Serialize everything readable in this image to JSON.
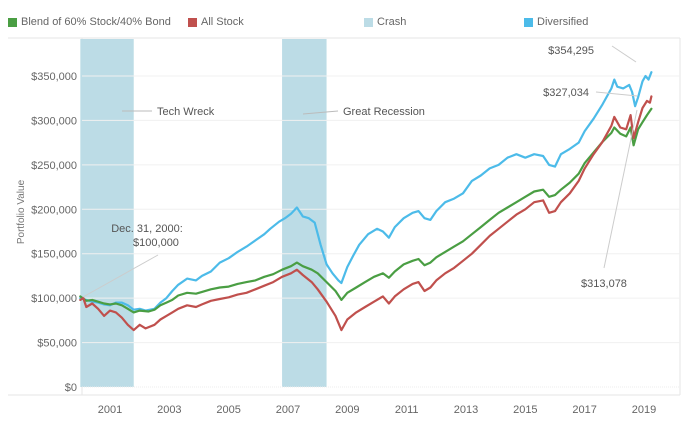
{
  "chart_data": {
    "type": "line",
    "title": "",
    "xlabel": "",
    "ylabel": "Portfolio Value",
    "xlim": [
      2000.0,
      2019.3
    ],
    "ylim": [
      0,
      370000
    ],
    "grid": true,
    "legend_position": "top",
    "x_ticks": [
      {
        "value": 2001,
        "label": "2001"
      },
      {
        "value": 2003,
        "label": "2003"
      },
      {
        "value": 2005,
        "label": "2005"
      },
      {
        "value": 2007,
        "label": "2007"
      },
      {
        "value": 2009,
        "label": "2009"
      },
      {
        "value": 2011,
        "label": "2011"
      },
      {
        "value": 2013,
        "label": "2013"
      },
      {
        "value": 2015,
        "label": "2015"
      },
      {
        "value": 2017,
        "label": "2017"
      },
      {
        "value": 2019,
        "label": "2019"
      }
    ],
    "y_ticks": [
      {
        "value": 0,
        "label": "$0"
      },
      {
        "value": 50000,
        "label": "$50,000"
      },
      {
        "value": 100000,
        "label": "$100,000"
      },
      {
        "value": 150000,
        "label": "$150,000"
      },
      {
        "value": 200000,
        "label": "$200,000"
      },
      {
        "value": 250000,
        "label": "$250,000"
      },
      {
        "value": 300000,
        "label": "$300,000"
      },
      {
        "value": 350000,
        "label": "$350,000"
      }
    ],
    "legend": [
      {
        "name": "Blend of 60% Stock/40% Bond",
        "color": "#4a9e43"
      },
      {
        "name": "All Stock",
        "color": "#c0504d"
      },
      {
        "name": "Crash",
        "color": "#bcdce6"
      },
      {
        "name": "Diversified",
        "color": "#4cbbe9"
      }
    ],
    "crash_bands": [
      {
        "label": "Tech Wreck",
        "start": 2000.0,
        "end": 2001.8
      },
      {
        "label": "Great Recession",
        "start": 2006.8,
        "end": 2008.3
      }
    ],
    "series": [
      {
        "name": "Diversified",
        "color": "#4cbbe9",
        "points": [
          [
            2000.0,
            100000
          ],
          [
            2000.2,
            98000
          ],
          [
            2000.4,
            96000
          ],
          [
            2000.6,
            95000
          ],
          [
            2000.8,
            93000
          ],
          [
            2001.0,
            92000
          ],
          [
            2001.2,
            95000
          ],
          [
            2001.4,
            95000
          ],
          [
            2001.6,
            92000
          ],
          [
            2001.8,
            87000
          ],
          [
            2002.0,
            88000
          ],
          [
            2002.2,
            86000
          ],
          [
            2002.5,
            88000
          ],
          [
            2002.7,
            95000
          ],
          [
            2002.9,
            100000
          ],
          [
            2003.1,
            108000
          ],
          [
            2003.3,
            115000
          ],
          [
            2003.6,
            122000
          ],
          [
            2003.9,
            120000
          ],
          [
            2004.1,
            125000
          ],
          [
            2004.4,
            130000
          ],
          [
            2004.7,
            140000
          ],
          [
            2005.0,
            145000
          ],
          [
            2005.3,
            152000
          ],
          [
            2005.6,
            158000
          ],
          [
            2005.9,
            165000
          ],
          [
            2006.2,
            172000
          ],
          [
            2006.4,
            178000
          ],
          [
            2006.7,
            186000
          ],
          [
            2006.9,
            190000
          ],
          [
            2007.1,
            195000
          ],
          [
            2007.3,
            202000
          ],
          [
            2007.5,
            192000
          ],
          [
            2007.7,
            190000
          ],
          [
            2007.9,
            185000
          ],
          [
            2008.1,
            160000
          ],
          [
            2008.3,
            138000
          ],
          [
            2008.5,
            128000
          ],
          [
            2008.7,
            120000
          ],
          [
            2008.8,
            117000
          ],
          [
            2009.0,
            135000
          ],
          [
            2009.2,
            148000
          ],
          [
            2009.4,
            160000
          ],
          [
            2009.7,
            172000
          ],
          [
            2010.0,
            178000
          ],
          [
            2010.2,
            175000
          ],
          [
            2010.4,
            168000
          ],
          [
            2010.6,
            180000
          ],
          [
            2010.9,
            190000
          ],
          [
            2011.2,
            196000
          ],
          [
            2011.4,
            198000
          ],
          [
            2011.6,
            190000
          ],
          [
            2011.8,
            188000
          ],
          [
            2012.0,
            198000
          ],
          [
            2012.3,
            208000
          ],
          [
            2012.6,
            212000
          ],
          [
            2012.9,
            218000
          ],
          [
            2013.2,
            232000
          ],
          [
            2013.5,
            238000
          ],
          [
            2013.8,
            246000
          ],
          [
            2014.1,
            250000
          ],
          [
            2014.4,
            258000
          ],
          [
            2014.7,
            262000
          ],
          [
            2015.0,
            258000
          ],
          [
            2015.3,
            262000
          ],
          [
            2015.6,
            260000
          ],
          [
            2015.8,
            250000
          ],
          [
            2016.0,
            248000
          ],
          [
            2016.2,
            262000
          ],
          [
            2016.5,
            268000
          ],
          [
            2016.8,
            275000
          ],
          [
            2017.0,
            288000
          ],
          [
            2017.3,
            302000
          ],
          [
            2017.6,
            318000
          ],
          [
            2017.9,
            336000
          ],
          [
            2018.0,
            346000
          ],
          [
            2018.1,
            338000
          ],
          [
            2018.3,
            336000
          ],
          [
            2018.5,
            340000
          ],
          [
            2018.6,
            332000
          ],
          [
            2018.7,
            316000
          ],
          [
            2018.8,
            326000
          ],
          [
            2018.95,
            344000
          ],
          [
            2019.05,
            350000
          ],
          [
            2019.15,
            346000
          ],
          [
            2019.25,
            354295
          ]
        ]
      },
      {
        "name": "Blend of 60% Stock/40% Bond",
        "color": "#4a9e43",
        "points": [
          [
            2000.0,
            102000
          ],
          [
            2000.2,
            97000
          ],
          [
            2000.4,
            98000
          ],
          [
            2000.6,
            96000
          ],
          [
            2000.8,
            94000
          ],
          [
            2001.0,
            93000
          ],
          [
            2001.2,
            94000
          ],
          [
            2001.4,
            92000
          ],
          [
            2001.6,
            88000
          ],
          [
            2001.8,
            84000
          ],
          [
            2002.0,
            86000
          ],
          [
            2002.3,
            85000
          ],
          [
            2002.5,
            87000
          ],
          [
            2002.7,
            92000
          ],
          [
            2002.9,
            95000
          ],
          [
            2003.1,
            98000
          ],
          [
            2003.3,
            103000
          ],
          [
            2003.6,
            106000
          ],
          [
            2003.9,
            105000
          ],
          [
            2004.1,
            107000
          ],
          [
            2004.4,
            110000
          ],
          [
            2004.7,
            112000
          ],
          [
            2005.0,
            113000
          ],
          [
            2005.3,
            116000
          ],
          [
            2005.6,
            118000
          ],
          [
            2005.9,
            120000
          ],
          [
            2006.2,
            124000
          ],
          [
            2006.5,
            127000
          ],
          [
            2006.8,
            132000
          ],
          [
            2007.1,
            136000
          ],
          [
            2007.3,
            140000
          ],
          [
            2007.5,
            136000
          ],
          [
            2007.8,
            132000
          ],
          [
            2008.0,
            128000
          ],
          [
            2008.3,
            118000
          ],
          [
            2008.6,
            108000
          ],
          [
            2008.8,
            98000
          ],
          [
            2009.0,
            106000
          ],
          [
            2009.3,
            112000
          ],
          [
            2009.6,
            118000
          ],
          [
            2009.9,
            124000
          ],
          [
            2010.2,
            128000
          ],
          [
            2010.4,
            123000
          ],
          [
            2010.6,
            130000
          ],
          [
            2010.9,
            138000
          ],
          [
            2011.2,
            142000
          ],
          [
            2011.4,
            144000
          ],
          [
            2011.6,
            137000
          ],
          [
            2011.8,
            140000
          ],
          [
            2012.0,
            146000
          ],
          [
            2012.3,
            152000
          ],
          [
            2012.6,
            158000
          ],
          [
            2012.9,
            164000
          ],
          [
            2013.2,
            172000
          ],
          [
            2013.5,
            180000
          ],
          [
            2013.8,
            188000
          ],
          [
            2014.1,
            196000
          ],
          [
            2014.4,
            202000
          ],
          [
            2014.7,
            208000
          ],
          [
            2015.0,
            214000
          ],
          [
            2015.3,
            220000
          ],
          [
            2015.6,
            222000
          ],
          [
            2015.8,
            214000
          ],
          [
            2016.0,
            216000
          ],
          [
            2016.2,
            222000
          ],
          [
            2016.5,
            230000
          ],
          [
            2016.8,
            240000
          ],
          [
            2017.0,
            252000
          ],
          [
            2017.3,
            264000
          ],
          [
            2017.6,
            276000
          ],
          [
            2017.9,
            286000
          ],
          [
            2018.0,
            292000
          ],
          [
            2018.2,
            285000
          ],
          [
            2018.4,
            282000
          ],
          [
            2018.55,
            292000
          ],
          [
            2018.65,
            272000
          ],
          [
            2018.8,
            290000
          ],
          [
            2018.95,
            298000
          ],
          [
            2019.1,
            306000
          ],
          [
            2019.25,
            313078
          ]
        ]
      },
      {
        "name": "All Stock",
        "color": "#c0504d",
        "points": [
          [
            2000.0,
            98000
          ],
          [
            2000.1,
            100000
          ],
          [
            2000.2,
            90000
          ],
          [
            2000.4,
            94000
          ],
          [
            2000.6,
            88000
          ],
          [
            2000.8,
            80000
          ],
          [
            2001.0,
            86000
          ],
          [
            2001.2,
            84000
          ],
          [
            2001.4,
            78000
          ],
          [
            2001.6,
            70000
          ],
          [
            2001.8,
            64000
          ],
          [
            2002.0,
            70000
          ],
          [
            2002.2,
            66000
          ],
          [
            2002.5,
            70000
          ],
          [
            2002.7,
            76000
          ],
          [
            2002.9,
            80000
          ],
          [
            2003.1,
            84000
          ],
          [
            2003.3,
            88000
          ],
          [
            2003.6,
            92000
          ],
          [
            2003.9,
            90000
          ],
          [
            2004.1,
            93000
          ],
          [
            2004.4,
            97000
          ],
          [
            2004.7,
            99000
          ],
          [
            2005.0,
            101000
          ],
          [
            2005.3,
            104000
          ],
          [
            2005.6,
            106000
          ],
          [
            2005.9,
            110000
          ],
          [
            2006.2,
            114000
          ],
          [
            2006.5,
            118000
          ],
          [
            2006.8,
            124000
          ],
          [
            2007.1,
            128000
          ],
          [
            2007.3,
            132000
          ],
          [
            2007.5,
            126000
          ],
          [
            2007.8,
            118000
          ],
          [
            2008.0,
            110000
          ],
          [
            2008.3,
            96000
          ],
          [
            2008.6,
            80000
          ],
          [
            2008.8,
            64000
          ],
          [
            2009.0,
            76000
          ],
          [
            2009.3,
            84000
          ],
          [
            2009.6,
            90000
          ],
          [
            2009.9,
            96000
          ],
          [
            2010.2,
            102000
          ],
          [
            2010.4,
            94000
          ],
          [
            2010.6,
            102000
          ],
          [
            2010.9,
            110000
          ],
          [
            2011.2,
            116000
          ],
          [
            2011.4,
            118000
          ],
          [
            2011.6,
            108000
          ],
          [
            2011.8,
            112000
          ],
          [
            2012.0,
            120000
          ],
          [
            2012.3,
            128000
          ],
          [
            2012.6,
            134000
          ],
          [
            2012.9,
            142000
          ],
          [
            2013.2,
            150000
          ],
          [
            2013.5,
            160000
          ],
          [
            2013.8,
            170000
          ],
          [
            2014.1,
            178000
          ],
          [
            2014.4,
            186000
          ],
          [
            2014.7,
            194000
          ],
          [
            2015.0,
            200000
          ],
          [
            2015.3,
            208000
          ],
          [
            2015.6,
            210000
          ],
          [
            2015.8,
            196000
          ],
          [
            2016.0,
            198000
          ],
          [
            2016.2,
            208000
          ],
          [
            2016.5,
            218000
          ],
          [
            2016.8,
            232000
          ],
          [
            2017.0,
            246000
          ],
          [
            2017.3,
            262000
          ],
          [
            2017.6,
            276000
          ],
          [
            2017.9,
            294000
          ],
          [
            2018.0,
            304000
          ],
          [
            2018.2,
            292000
          ],
          [
            2018.4,
            290000
          ],
          [
            2018.55,
            306000
          ],
          [
            2018.65,
            280000
          ],
          [
            2018.8,
            298000
          ],
          [
            2018.95,
            314000
          ],
          [
            2019.1,
            322000
          ],
          [
            2019.2,
            320000
          ],
          [
            2019.25,
            327034
          ]
        ]
      }
    ],
    "annotations": [
      {
        "id": "start",
        "text_lines": [
          "Dec. 31, 2000:",
          "$100,000"
        ],
        "target": [
          2000.0,
          100000
        ]
      },
      {
        "id": "diversified-end",
        "text_lines": [
          "$354,295"
        ],
        "target": [
          2019.25,
          354295
        ]
      },
      {
        "id": "allstock-end",
        "text_lines": [
          "$327,034"
        ],
        "target": [
          2019.25,
          327034
        ]
      },
      {
        "id": "blend-end",
        "text_lines": [
          "$313,078"
        ],
        "target": [
          2019.25,
          313078
        ]
      }
    ]
  }
}
